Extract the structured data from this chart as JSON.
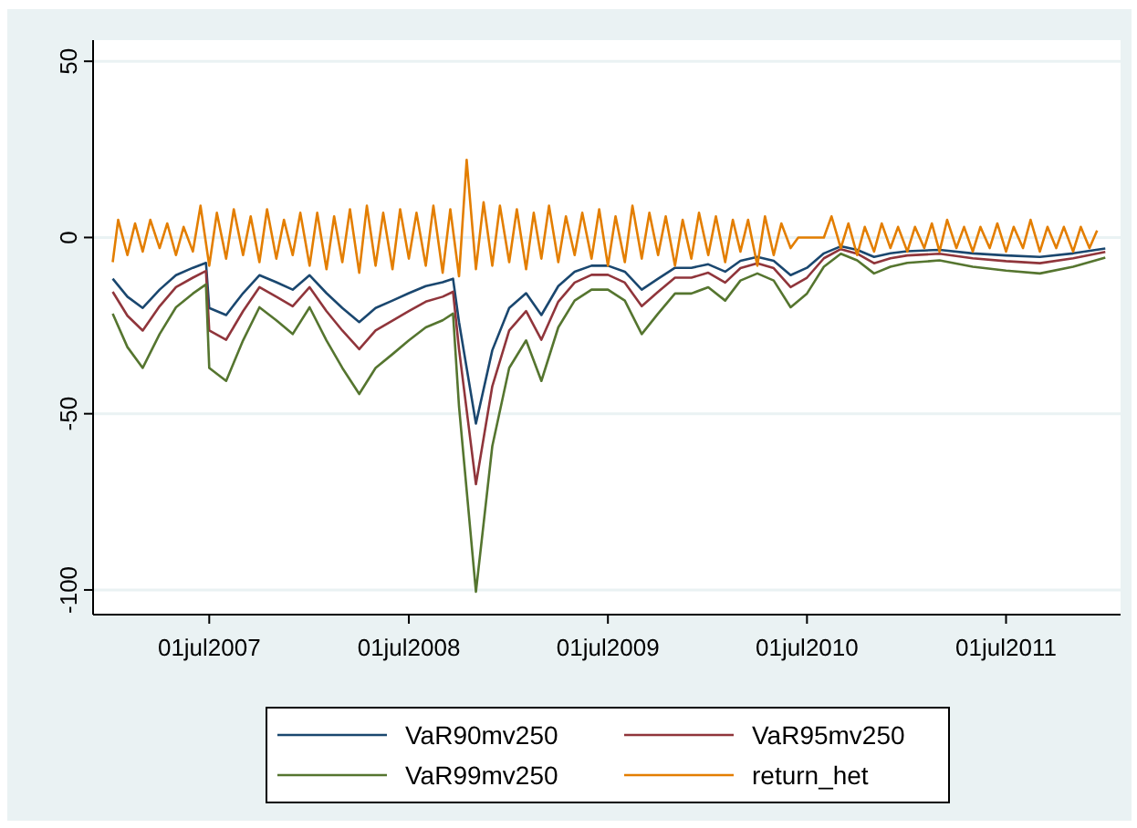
{
  "chart_data": {
    "type": "line",
    "x": [
      "2007-01-05",
      "2007-02-01",
      "2007-03-01",
      "2007-04-01",
      "2007-05-01",
      "2007-06-01",
      "2007-06-25",
      "2007-07-01",
      "2007-08-01",
      "2007-09-01",
      "2007-10-01",
      "2007-11-01",
      "2007-12-01",
      "2008-01-01",
      "2008-02-01",
      "2008-03-01",
      "2008-04-01",
      "2008-05-01",
      "2008-06-01",
      "2008-07-01",
      "2008-08-01",
      "2008-09-01",
      "2008-09-20",
      "2008-10-01",
      "2008-11-01",
      "2008-12-01",
      "2009-01-01",
      "2009-02-01",
      "2009-03-01",
      "2009-04-01",
      "2009-05-01",
      "2009-06-01",
      "2009-07-01",
      "2009-08-01",
      "2009-09-01",
      "2009-10-01",
      "2009-11-01",
      "2009-12-01",
      "2010-01-01",
      "2010-02-01",
      "2010-03-01",
      "2010-04-01",
      "2010-05-01",
      "2010-06-01",
      "2010-07-01",
      "2010-08-01",
      "2010-09-01",
      "2010-10-01",
      "2010-11-01",
      "2010-12-01",
      "2011-01-01",
      "2011-03-01",
      "2011-05-01",
      "2011-07-01",
      "2011-09-01",
      "2011-11-01",
      "2011-12-30"
    ],
    "series": [
      {
        "name": "VaR90mv250",
        "color": "#1a476f",
        "values": [
          -11.7,
          -16.8,
          -20,
          -14.8,
          -10.7,
          -8.6,
          -7.2,
          -20,
          -22,
          -15.8,
          -10.7,
          -12.7,
          -14.8,
          -10.7,
          -15.8,
          -20,
          -24,
          -20,
          -17.9,
          -15.8,
          -13.8,
          -12.7,
          -11.7,
          -24,
          -52.8,
          -32,
          -20,
          -15.8,
          -22,
          -13.8,
          -9.7,
          -8,
          -8,
          -9.7,
          -14.8,
          -11.7,
          -8.6,
          -8.6,
          -7.6,
          -9.7,
          -6.6,
          -5.5,
          -6.6,
          -10.7,
          -8.6,
          -4.5,
          -2.5,
          -3.5,
          -5.5,
          -4.5,
          -3.9,
          -3.5,
          -4.5,
          -5.1,
          -5.5,
          -4.5,
          -3.1
        ]
      },
      {
        "name": "VaR95mv250",
        "color": "#90353b",
        "values": [
          -15.4,
          -22.2,
          -26.4,
          -19.5,
          -14.1,
          -11.4,
          -9.5,
          -26.4,
          -29,
          -20.9,
          -14.1,
          -16.8,
          -19.5,
          -14.1,
          -20.9,
          -26.4,
          -31.7,
          -26.4,
          -23.6,
          -20.9,
          -18.2,
          -16.8,
          -15.4,
          -31.7,
          -70,
          -42.2,
          -26.4,
          -20.9,
          -29,
          -18.2,
          -12.8,
          -10.6,
          -10.6,
          -12.8,
          -19.5,
          -15.4,
          -11.4,
          -11.4,
          -10,
          -12.8,
          -8.7,
          -7.3,
          -8.7,
          -14.1,
          -11.4,
          -5.9,
          -3.3,
          -4.6,
          -7.3,
          -5.9,
          -5.1,
          -4.6,
          -5.9,
          -6.7,
          -7.3,
          -5.9,
          -4.1
        ]
      },
      {
        "name": "VaR99mv250",
        "color": "#55752f",
        "values": [
          -21.6,
          -31.1,
          -37,
          -27.4,
          -19.8,
          -15.9,
          -13.3,
          -37,
          -40.7,
          -29.2,
          -19.8,
          -23.5,
          -27.4,
          -19.8,
          -29.2,
          -37,
          -44.4,
          -37,
          -33.1,
          -29.2,
          -25.5,
          -23.5,
          -21.6,
          -48,
          -100.5,
          -59.2,
          -37,
          -29.2,
          -40.7,
          -25.5,
          -17.9,
          -14.8,
          -14.8,
          -17.9,
          -27.4,
          -21.6,
          -15.9,
          -15.9,
          -14.1,
          -17.9,
          -12.2,
          -10.2,
          -12.2,
          -19.8,
          -15.9,
          -8.3,
          -4.6,
          -6.5,
          -10.2,
          -8.3,
          -7.2,
          -6.5,
          -8.3,
          -9.4,
          -10.2,
          -8.3,
          -5.7
        ]
      },
      {
        "name": "return_het",
        "color": "#e37e00",
        "x": [
          "2007-01-05",
          "2007-01-15",
          "2007-02-01",
          "2007-02-15",
          "2007-03-01",
          "2007-03-15",
          "2007-04-01",
          "2007-04-15",
          "2007-05-01",
          "2007-05-15",
          "2007-06-01",
          "2007-06-15",
          "2007-07-01",
          "2007-07-15",
          "2007-08-01",
          "2007-08-15",
          "2007-09-01",
          "2007-09-15",
          "2007-10-01",
          "2007-10-15",
          "2007-11-01",
          "2007-11-15",
          "2007-12-01",
          "2007-12-15",
          "2008-01-01",
          "2008-01-15",
          "2008-02-01",
          "2008-02-15",
          "2008-03-01",
          "2008-03-15",
          "2008-04-01",
          "2008-04-15",
          "2008-05-01",
          "2008-05-15",
          "2008-06-01",
          "2008-06-15",
          "2008-07-01",
          "2008-07-15",
          "2008-08-01",
          "2008-08-15",
          "2008-09-01",
          "2008-09-15",
          "2008-10-01",
          "2008-10-15",
          "2008-11-01",
          "2008-11-15",
          "2008-12-01",
          "2008-12-15",
          "2009-01-01",
          "2009-01-15",
          "2009-02-01",
          "2009-02-15",
          "2009-03-01",
          "2009-03-15",
          "2009-04-01",
          "2009-04-15",
          "2009-05-01",
          "2009-05-15",
          "2009-06-01",
          "2009-06-15",
          "2009-07-01",
          "2009-07-15",
          "2009-08-01",
          "2009-08-15",
          "2009-09-01",
          "2009-09-15",
          "2009-10-01",
          "2009-10-15",
          "2009-11-01",
          "2009-11-15",
          "2009-12-01",
          "2009-12-15",
          "2010-01-01",
          "2010-01-15",
          "2010-02-01",
          "2010-02-15",
          "2010-03-01",
          "2010-03-15",
          "2010-04-01",
          "2010-04-15",
          "2010-05-01",
          "2010-05-15",
          "2010-06-01",
          "2010-06-15",
          "2010-07-01",
          "2010-07-15",
          "2010-08-01",
          "2010-08-15",
          "2010-09-01",
          "2010-09-15",
          "2010-10-01",
          "2010-10-15",
          "2010-11-01",
          "2010-11-15",
          "2010-12-01",
          "2010-12-15",
          "2011-01-01",
          "2011-01-15",
          "2011-02-01",
          "2011-02-15",
          "2011-03-01",
          "2011-03-15",
          "2011-04-01",
          "2011-04-15",
          "2011-05-01",
          "2011-05-15",
          "2011-06-01",
          "2011-06-15",
          "2011-07-01",
          "2011-07-15",
          "2011-08-01",
          "2011-08-15",
          "2011-09-01",
          "2011-09-15",
          "2011-10-01",
          "2011-10-15",
          "2011-11-01",
          "2011-11-15",
          "2011-12-01",
          "2011-12-15"
        ],
        "values": [
          -7,
          5,
          -5,
          4,
          -4,
          5,
          -3,
          4,
          -5,
          3,
          -4,
          9,
          -8,
          7,
          -6,
          8,
          -5,
          6,
          -7,
          8,
          -6,
          5,
          -5,
          7,
          -8,
          7,
          -9,
          6,
          -7,
          8,
          -10,
          9,
          -8,
          7,
          -9,
          8,
          -6,
          7,
          -8,
          9,
          -10,
          8,
          -11,
          22,
          -9,
          10,
          -8,
          9,
          -7,
          8,
          -9,
          7,
          -6,
          9,
          -7,
          6,
          -5,
          7,
          -6,
          8,
          -8,
          6,
          -7,
          9,
          -6,
          7,
          -5,
          6,
          -8,
          5,
          -6,
          7,
          -5,
          6,
          -7,
          5,
          -4,
          5,
          -8,
          6,
          -5,
          4,
          -3,
          0,
          0,
          0,
          0,
          6,
          -3,
          4,
          -5,
          3,
          -4,
          4,
          -3,
          3,
          -4,
          3,
          -3,
          4,
          -4,
          5,
          -3,
          3,
          -4,
          3,
          -3,
          4,
          -4,
          3,
          -3,
          5,
          -4,
          3,
          -3,
          3,
          -4,
          3,
          -3,
          2
        ]
      }
    ],
    "xlim": [
      "2006-11-30",
      "2012-01-27"
    ],
    "xticks": [
      {
        "value": "2007-07-01",
        "label": "01jul2007"
      },
      {
        "value": "2008-07-01",
        "label": "01jul2008"
      },
      {
        "value": "2009-07-01",
        "label": "01jul2009"
      },
      {
        "value": "2010-07-01",
        "label": "01jul2010"
      },
      {
        "value": "2011-07-01",
        "label": "01jul2011"
      }
    ],
    "ylim": [
      -107,
      56
    ],
    "yticks": [
      50,
      0,
      -50,
      -100
    ],
    "grid": "y",
    "legend": "bottom"
  }
}
